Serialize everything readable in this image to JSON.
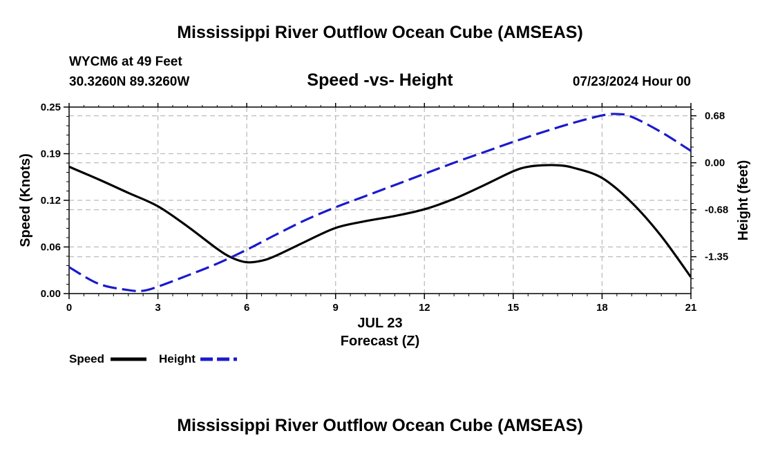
{
  "page": {
    "top_title": "Mississippi River Outflow Ocean Cube (AMSEAS)",
    "bottom_title": "Mississippi River Outflow Ocean Cube (AMSEAS)",
    "station": "WYCM6 at 49 Feet",
    "coordinates": "30.3260N  89.3260W",
    "subtitle": "Speed -vs- Height",
    "datetime": "07/23/2024 Hour 00",
    "date_label": "JUL 23"
  },
  "colors": {
    "speed": "#000000",
    "height": "#1a1acc",
    "grid": "#bbbbbb"
  },
  "chart_data": {
    "type": "line",
    "title": "Speed -vs- Height",
    "xlabel": "Forecast (Z)",
    "ylabel": "Speed (Knots)",
    "y2label": "Height (feet)",
    "xlim": [
      0,
      21
    ],
    "ylim": [
      0,
      0.25
    ],
    "y2lim": [
      -1.88,
      0.8
    ],
    "x_ticks": [
      0,
      3,
      6,
      9,
      12,
      15,
      18,
      21
    ],
    "x_tick_labels": [
      "0",
      "3",
      "6",
      "9",
      "12",
      "15",
      "18",
      "21"
    ],
    "y_ticks": [
      0,
      0.0625,
      0.125,
      0.1875,
      0.25
    ],
    "y_tick_labels": [
      "0.00",
      "0.06",
      "0.12",
      "0.19",
      "0.25"
    ],
    "y2_ticks": [
      -1.35,
      -0.675,
      0,
      0.675
    ],
    "y2_tick_labels": [
      "-1.35",
      "-0.68",
      "0.00",
      "0.68"
    ],
    "grid": true,
    "legend": [
      "Speed",
      "Height"
    ],
    "series": [
      {
        "name": "Speed",
        "axis": "left",
        "style": "solid",
        "x": [
          0,
          1,
          2,
          3,
          4,
          5,
          5.5,
          6,
          6.5,
          7,
          8,
          9,
          10,
          11,
          12,
          13,
          14,
          15,
          15.5,
          16,
          16.5,
          17,
          18,
          19,
          20,
          21
        ],
        "values": [
          0.17,
          0.153,
          0.135,
          0.117,
          0.09,
          0.06,
          0.048,
          0.042,
          0.044,
          0.051,
          0.07,
          0.088,
          0.097,
          0.104,
          0.113,
          0.127,
          0.145,
          0.164,
          0.17,
          0.172,
          0.172,
          0.169,
          0.155,
          0.122,
          0.077,
          0.022
        ]
      },
      {
        "name": "Height",
        "axis": "right",
        "style": "dashed",
        "x": [
          0,
          1,
          2,
          2.5,
          3,
          4,
          5,
          6,
          7,
          8,
          9,
          10,
          11,
          12,
          13,
          14,
          15,
          16,
          17,
          18,
          18.5,
          19,
          20,
          21
        ],
        "values": [
          -1.5,
          -1.74,
          -1.83,
          -1.84,
          -1.78,
          -1.62,
          -1.45,
          -1.25,
          -1.03,
          -0.82,
          -0.64,
          -0.48,
          -0.32,
          -0.16,
          0.0,
          0.15,
          0.3,
          0.44,
          0.57,
          0.68,
          0.7,
          0.66,
          0.44,
          0.17
        ]
      }
    ]
  }
}
